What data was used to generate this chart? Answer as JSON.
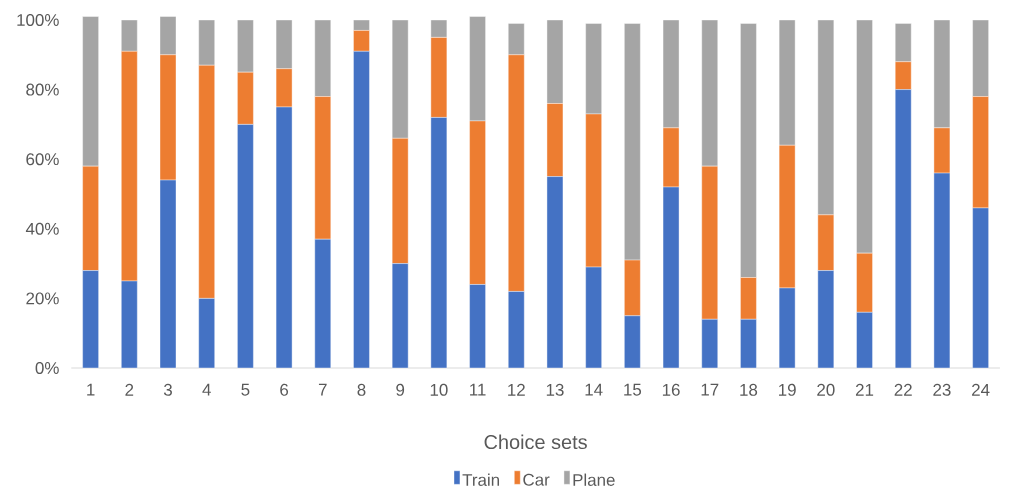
{
  "chart_data": {
    "type": "bar",
    "stacked": true,
    "xlabel": "Choice sets",
    "categories": [
      "1",
      "2",
      "3",
      "4",
      "5",
      "6",
      "7",
      "8",
      "9",
      "10",
      "11",
      "12",
      "13",
      "14",
      "15",
      "16",
      "17",
      "18",
      "19",
      "20",
      "21",
      "22",
      "23",
      "24"
    ],
    "series": [
      {
        "name": "Train",
        "color": "#4472c4",
        "values": [
          28,
          25,
          54,
          20,
          70,
          75,
          37,
          91,
          30,
          72,
          24,
          22,
          55,
          29,
          15,
          52,
          14,
          14,
          23,
          28,
          16,
          80,
          56,
          46
        ]
      },
      {
        "name": "Car",
        "color": "#ed7d31",
        "values": [
          30,
          66,
          36,
          67,
          15,
          11,
          41,
          6,
          36,
          23,
          47,
          68,
          21,
          44,
          16,
          17,
          44,
          12,
          41,
          16,
          17,
          8,
          13,
          32
        ]
      },
      {
        "name": "Plane",
        "color": "#a5a5a5",
        "values": [
          43,
          9,
          11,
          13,
          15,
          14,
          22,
          3,
          34,
          5,
          30,
          9,
          24,
          26,
          68,
          31,
          42,
          73,
          36,
          56,
          67,
          11,
          31,
          22
        ]
      }
    ],
    "ylim": [
      0,
      101
    ],
    "yticks": [
      {
        "value": 0,
        "label": "0%"
      },
      {
        "value": 20,
        "label": "20%"
      },
      {
        "value": 40,
        "label": "40%"
      },
      {
        "value": 60,
        "label": "60%"
      },
      {
        "value": 80,
        "label": "80%"
      },
      {
        "value": 100,
        "label": "100%"
      }
    ],
    "legend": "bottom",
    "grid": false
  }
}
